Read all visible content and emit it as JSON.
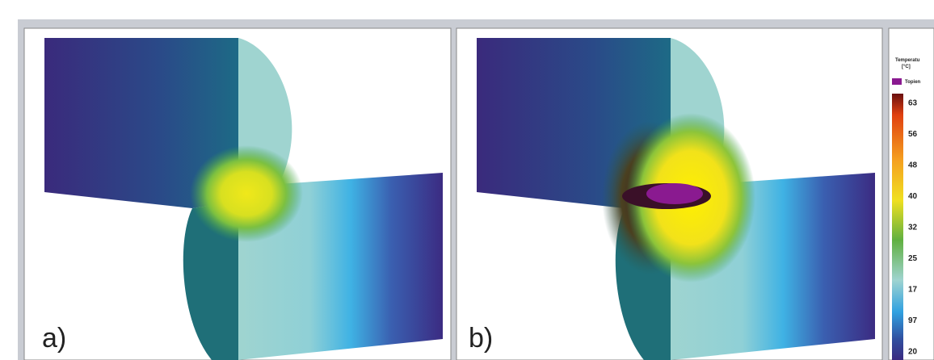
{
  "panels": [
    {
      "label": "a)"
    },
    {
      "label": "b)"
    }
  ],
  "legend": {
    "title": "Temperatu",
    "unit": "[°C]",
    "entry": "Topien",
    "ticks": [
      "63",
      "56",
      "48",
      "40",
      "32",
      "25",
      "17",
      "97",
      "20"
    ]
  }
}
